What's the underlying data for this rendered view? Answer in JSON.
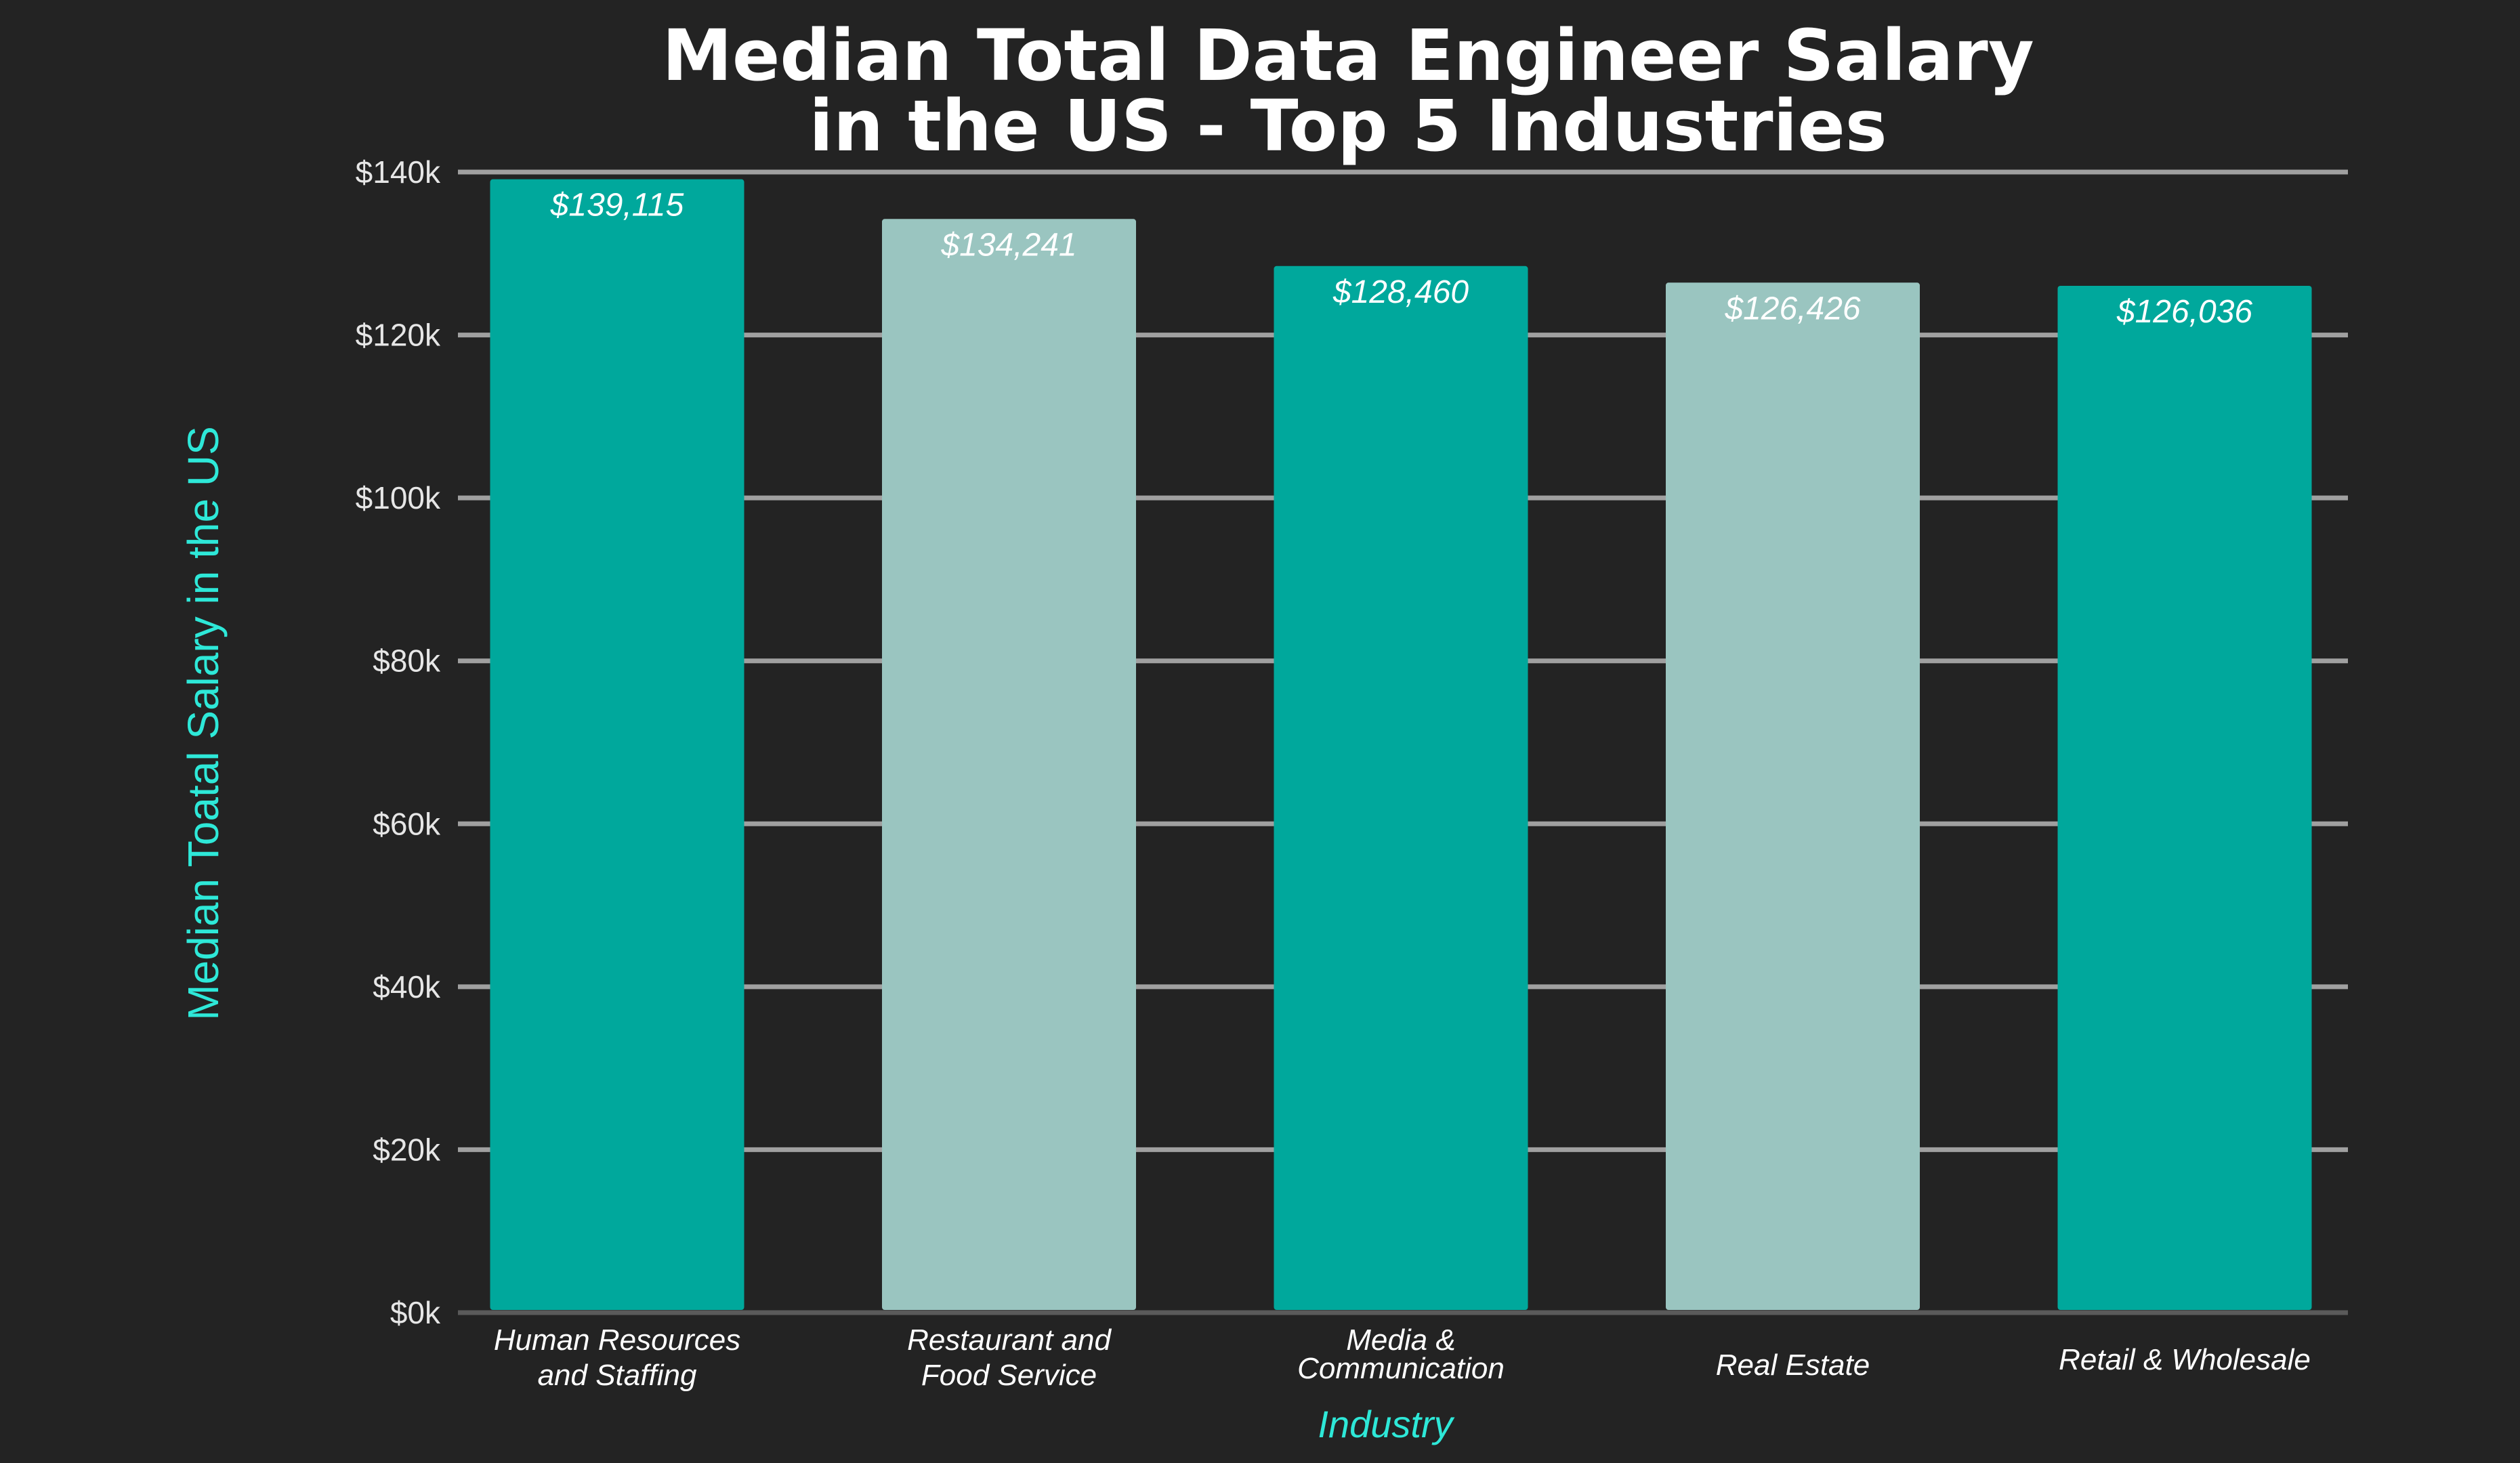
{
  "chart_data": {
    "type": "bar",
    "title": [
      "Median Total Data Engineer Salary",
      "in the US -  Top 5 Industries"
    ],
    "xlabel": "Industry",
    "ylabel": "Median Toatal Salary in the US",
    "categories": [
      [
        "Human Resources",
        "and Staffing"
      ],
      [
        "Restaurant and",
        "Food Service"
      ],
      [
        "Media &",
        "Communication"
      ],
      [
        "Real Estate"
      ],
      [
        "Retail & Wholesale"
      ]
    ],
    "values": [
      139115,
      134241,
      128460,
      126426,
      126036
    ],
    "data_labels": [
      "$139,115",
      "$134,241",
      "$128,460",
      "$126,426",
      "$126,036"
    ],
    "bar_colors": [
      "#00a89c",
      "#9ac5c0",
      "#00a89c",
      "#9ac5c0",
      "#00a89c"
    ],
    "ylim": [
      0,
      140000
    ],
    "yticks": [
      0,
      20000,
      40000,
      60000,
      80000,
      100000,
      120000,
      140000
    ],
    "ytick_labels": [
      "$0k",
      "$20k",
      "$40k",
      "$60k",
      "$80k",
      "$100k",
      "$120k",
      "$140k"
    ],
    "grid": true,
    "background": "#232323",
    "gridline_color": "#a0a0a0"
  }
}
